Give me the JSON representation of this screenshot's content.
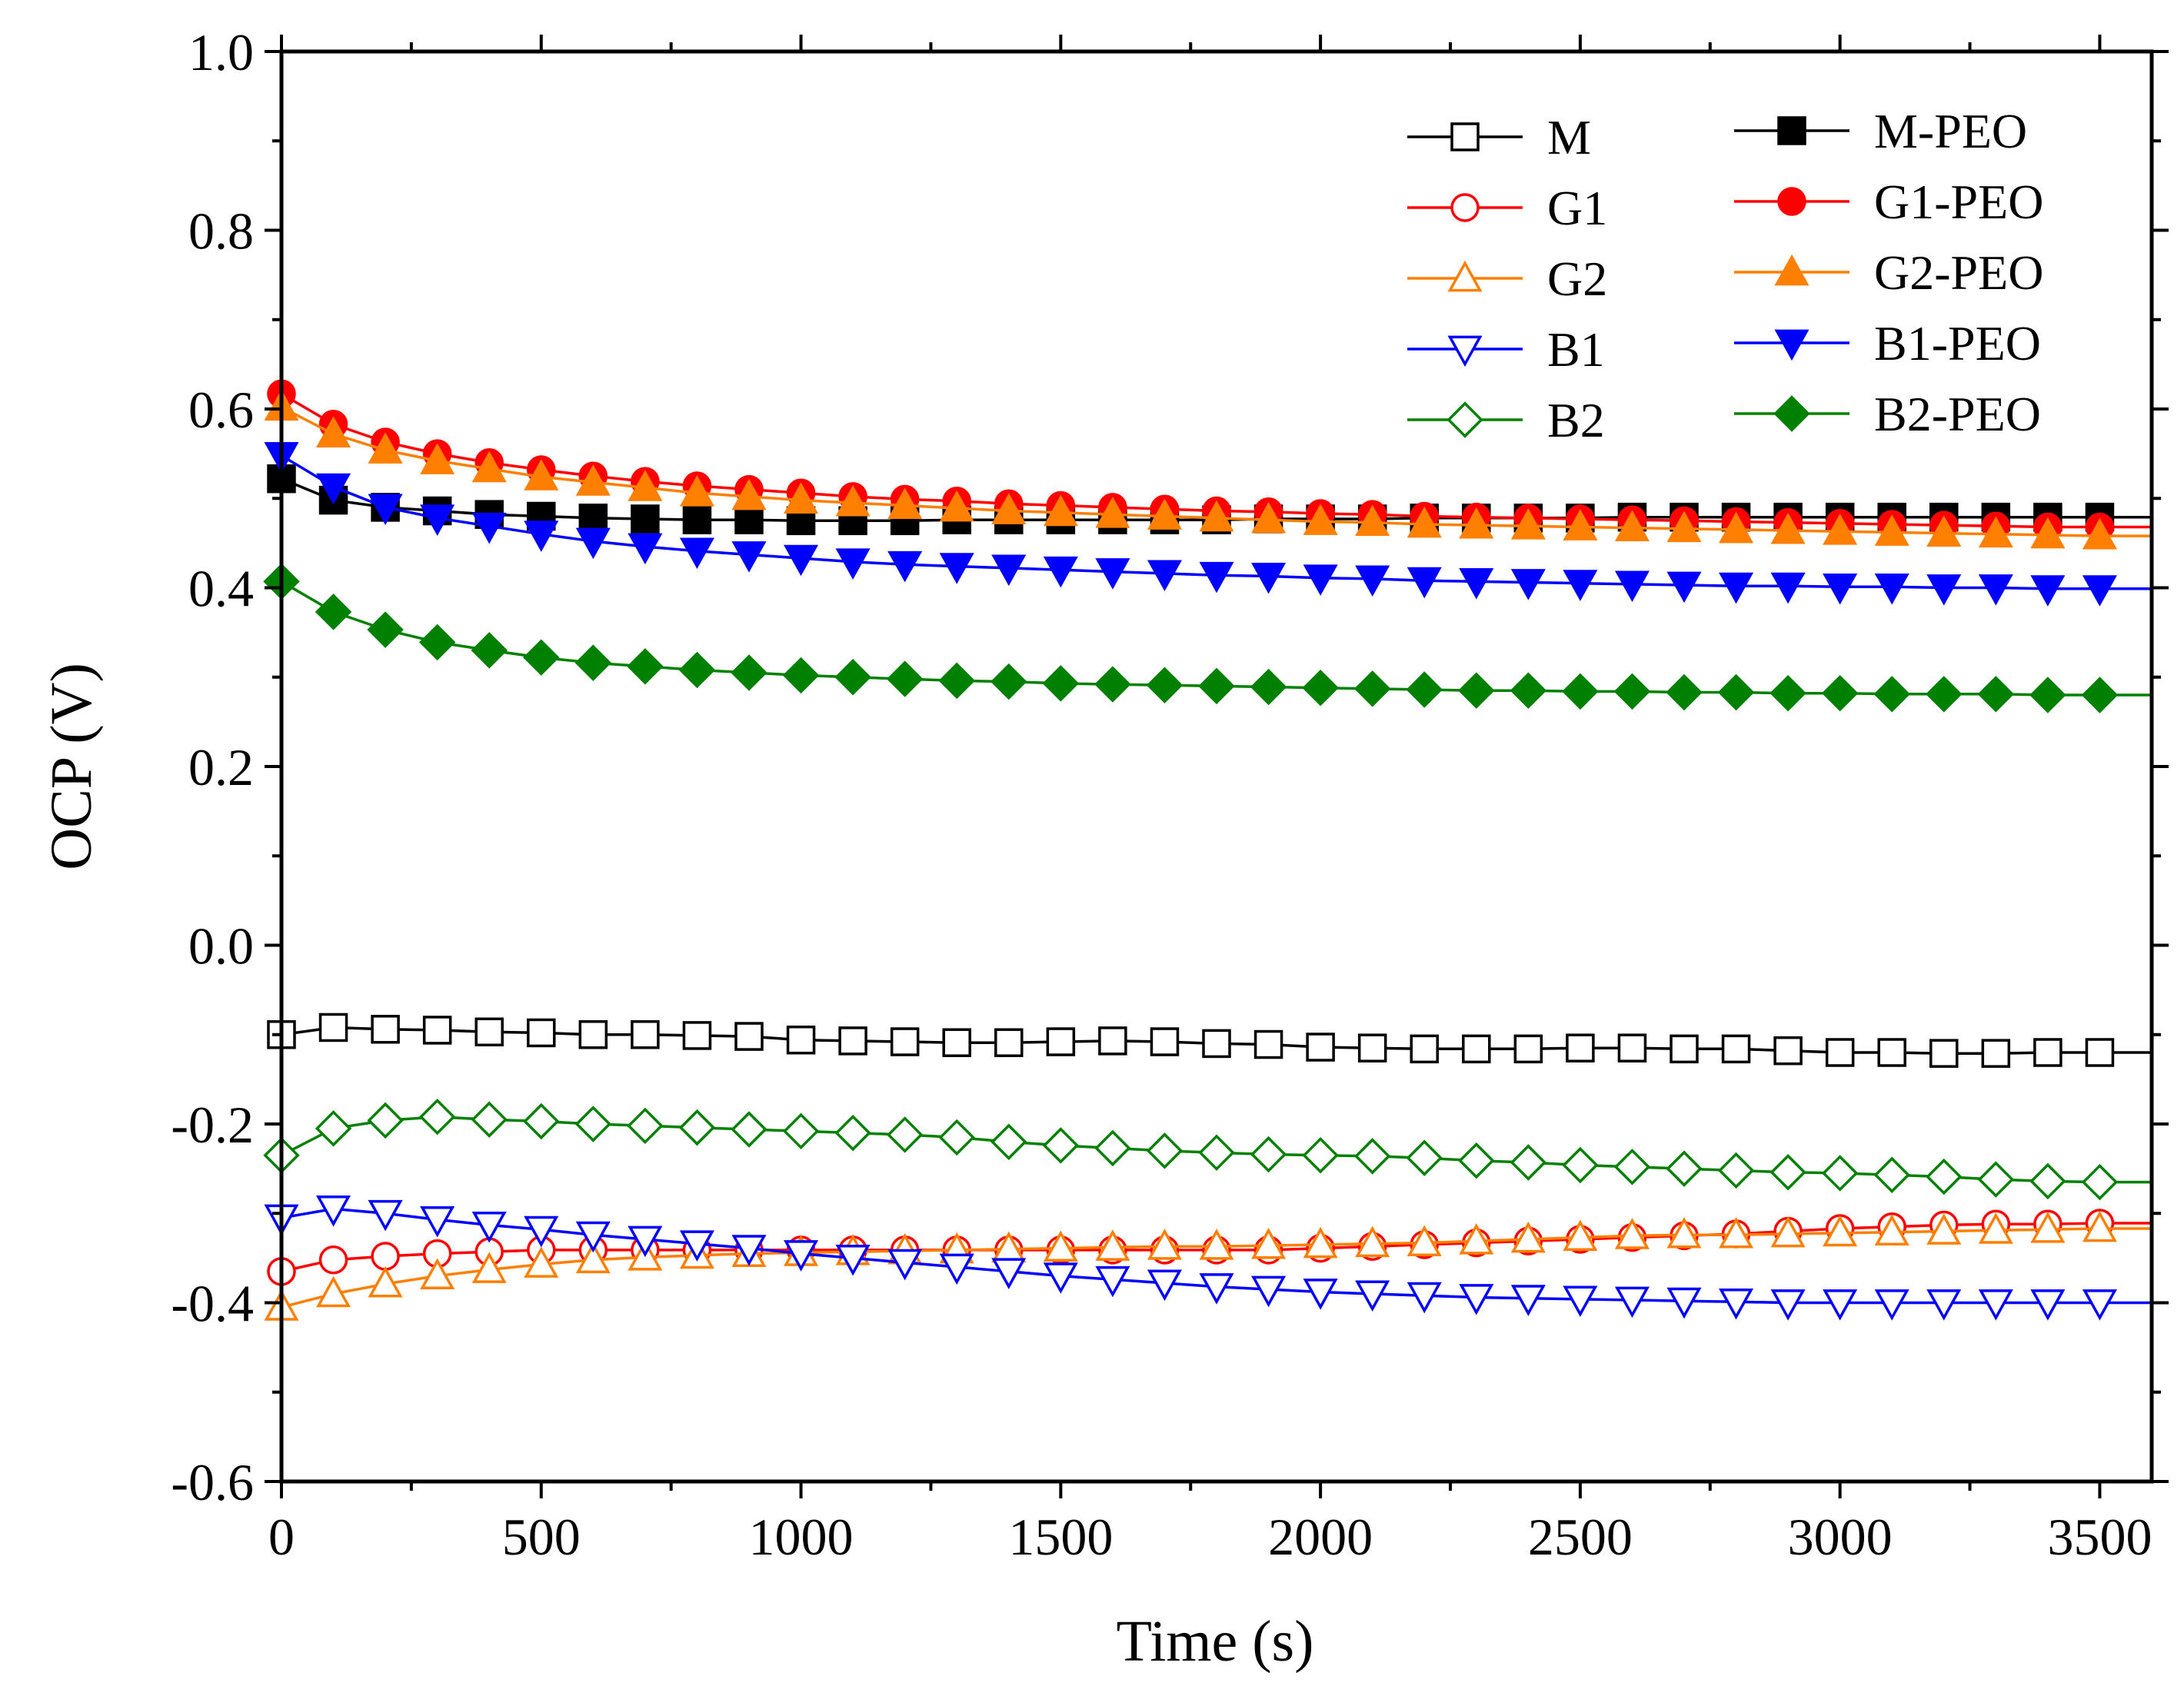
{
  "chart_data": {
    "type": "line",
    "title": "",
    "xlabel": "Time (s)",
    "ylabel": "OCP (V)",
    "xlim": [
      0,
      3600
    ],
    "ylim": [
      -0.6,
      1.0
    ],
    "xticks": [
      0,
      500,
      1000,
      1500,
      2000,
      2500,
      3000,
      3500
    ],
    "xtick_labels": [
      "0",
      "500",
      "1000",
      "1500",
      "2000",
      "2500",
      "3000",
      "3500"
    ],
    "yticks": [
      -0.6,
      -0.4,
      -0.2,
      0.0,
      0.2,
      0.4,
      0.6,
      0.8,
      1.0
    ],
    "ytick_labels": [
      "-0.6",
      "-0.4",
      "-0.2",
      "0.0",
      "0.2",
      "0.4",
      "0.6",
      "0.8",
      "1.0"
    ],
    "grid": false,
    "legend_position": "top-right",
    "x": [
      0,
      100,
      200,
      300,
      400,
      500,
      600,
      700,
      800,
      900,
      1000,
      1100,
      1200,
      1300,
      1400,
      1500,
      1600,
      1700,
      1800,
      1900,
      2000,
      2100,
      2200,
      2300,
      2400,
      2500,
      2600,
      2700,
      2800,
      2900,
      3000,
      3100,
      3200,
      3300,
      3400,
      3500
    ],
    "series": [
      {
        "name": "M",
        "color": "#000000",
        "marker": "square",
        "filled": false,
        "values": [
          -0.1,
          -0.092,
          -0.094,
          -0.095,
          -0.097,
          -0.098,
          -0.1,
          -0.1,
          -0.101,
          -0.102,
          -0.106,
          -0.107,
          -0.108,
          -0.109,
          -0.109,
          -0.108,
          -0.107,
          -0.108,
          -0.11,
          -0.111,
          -0.114,
          -0.115,
          -0.116,
          -0.116,
          -0.116,
          -0.115,
          -0.115,
          -0.116,
          -0.116,
          -0.118,
          -0.12,
          -0.12,
          -0.121,
          -0.121,
          -0.12,
          -0.12
        ]
      },
      {
        "name": "G1",
        "color": "#ff0000",
        "marker": "circle",
        "filled": false,
        "values": [
          -0.365,
          -0.352,
          -0.348,
          -0.345,
          -0.343,
          -0.341,
          -0.341,
          -0.341,
          -0.341,
          -0.341,
          -0.341,
          -0.341,
          -0.341,
          -0.341,
          -0.341,
          -0.341,
          -0.341,
          -0.341,
          -0.341,
          -0.341,
          -0.339,
          -0.337,
          -0.335,
          -0.333,
          -0.331,
          -0.329,
          -0.327,
          -0.325,
          -0.323,
          -0.32,
          -0.317,
          -0.315,
          -0.313,
          -0.312,
          -0.312,
          -0.311
        ]
      },
      {
        "name": "G2",
        "color": "#ff7f00",
        "marker": "triangle-up",
        "filled": false,
        "values": [
          -0.405,
          -0.39,
          -0.379,
          -0.37,
          -0.363,
          -0.357,
          -0.352,
          -0.349,
          -0.347,
          -0.345,
          -0.344,
          -0.343,
          -0.342,
          -0.341,
          -0.34,
          -0.339,
          -0.338,
          -0.337,
          -0.337,
          -0.336,
          -0.335,
          -0.334,
          -0.333,
          -0.331,
          -0.329,
          -0.327,
          -0.325,
          -0.324,
          -0.324,
          -0.323,
          -0.322,
          -0.321,
          -0.32,
          -0.319,
          -0.318,
          -0.317
        ]
      },
      {
        "name": "B1",
        "color": "#0000ff",
        "marker": "triangle-down",
        "filled": false,
        "values": [
          -0.305,
          -0.295,
          -0.3,
          -0.307,
          -0.313,
          -0.318,
          -0.324,
          -0.329,
          -0.334,
          -0.339,
          -0.345,
          -0.35,
          -0.355,
          -0.36,
          -0.365,
          -0.37,
          -0.374,
          -0.378,
          -0.382,
          -0.385,
          -0.388,
          -0.39,
          -0.392,
          -0.394,
          -0.395,
          -0.396,
          -0.397,
          -0.398,
          -0.399,
          -0.4,
          -0.4,
          -0.4,
          -0.4,
          -0.4,
          -0.4,
          -0.4
        ]
      },
      {
        "name": "B2",
        "color": "#008000",
        "marker": "diamond",
        "filled": false,
        "values": [
          -0.235,
          -0.205,
          -0.196,
          -0.192,
          -0.195,
          -0.197,
          -0.2,
          -0.202,
          -0.204,
          -0.206,
          -0.208,
          -0.21,
          -0.212,
          -0.215,
          -0.22,
          -0.224,
          -0.227,
          -0.23,
          -0.232,
          -0.234,
          -0.235,
          -0.236,
          -0.238,
          -0.241,
          -0.243,
          -0.246,
          -0.248,
          -0.25,
          -0.252,
          -0.254,
          -0.255,
          -0.257,
          -0.259,
          -0.262,
          -0.264,
          -0.265
        ]
      },
      {
        "name": "M-PEO",
        "color": "#000000",
        "marker": "square",
        "filled": true,
        "values": [
          0.522,
          0.498,
          0.49,
          0.486,
          0.482,
          0.48,
          0.478,
          0.477,
          0.476,
          0.476,
          0.475,
          0.475,
          0.475,
          0.476,
          0.476,
          0.476,
          0.476,
          0.476,
          0.476,
          0.477,
          0.477,
          0.477,
          0.478,
          0.478,
          0.478,
          0.478,
          0.479,
          0.479,
          0.479,
          0.479,
          0.479,
          0.479,
          0.479,
          0.479,
          0.479,
          0.479
        ]
      },
      {
        "name": "G1-PEO",
        "color": "#ff0000",
        "marker": "circle",
        "filled": true,
        "values": [
          0.617,
          0.583,
          0.563,
          0.55,
          0.54,
          0.532,
          0.525,
          0.519,
          0.514,
          0.51,
          0.506,
          0.502,
          0.499,
          0.497,
          0.494,
          0.492,
          0.49,
          0.488,
          0.486,
          0.485,
          0.483,
          0.482,
          0.48,
          0.479,
          0.478,
          0.477,
          0.476,
          0.475,
          0.474,
          0.473,
          0.472,
          0.471,
          0.47,
          0.469,
          0.468,
          0.468
        ]
      },
      {
        "name": "G2-PEO",
        "color": "#ff7f00",
        "marker": "triangle-up",
        "filled": true,
        "values": [
          0.602,
          0.572,
          0.554,
          0.542,
          0.533,
          0.524,
          0.518,
          0.512,
          0.506,
          0.502,
          0.498,
          0.495,
          0.492,
          0.489,
          0.486,
          0.484,
          0.482,
          0.48,
          0.478,
          0.476,
          0.474,
          0.473,
          0.471,
          0.47,
          0.469,
          0.468,
          0.467,
          0.466,
          0.465,
          0.464,
          0.463,
          0.462,
          0.461,
          0.46,
          0.459,
          0.458
        ]
      },
      {
        "name": "B1-PEO",
        "color": "#0000ff",
        "marker": "triangle-down",
        "filled": true,
        "values": [
          0.548,
          0.513,
          0.49,
          0.478,
          0.469,
          0.46,
          0.452,
          0.446,
          0.441,
          0.437,
          0.433,
          0.429,
          0.426,
          0.424,
          0.422,
          0.42,
          0.418,
          0.416,
          0.414,
          0.413,
          0.411,
          0.41,
          0.408,
          0.407,
          0.406,
          0.405,
          0.404,
          0.403,
          0.402,
          0.402,
          0.401,
          0.401,
          0.4,
          0.4,
          0.399,
          0.399
        ]
      },
      {
        "name": "B2-PEO",
        "color": "#008000",
        "marker": "diamond",
        "filled": true,
        "values": [
          0.407,
          0.373,
          0.353,
          0.339,
          0.33,
          0.322,
          0.316,
          0.312,
          0.308,
          0.305,
          0.302,
          0.3,
          0.298,
          0.296,
          0.295,
          0.293,
          0.292,
          0.291,
          0.29,
          0.289,
          0.288,
          0.287,
          0.286,
          0.285,
          0.285,
          0.284,
          0.284,
          0.283,
          0.283,
          0.282,
          0.282,
          0.281,
          0.281,
          0.281,
          0.28,
          0.28
        ]
      }
    ]
  }
}
